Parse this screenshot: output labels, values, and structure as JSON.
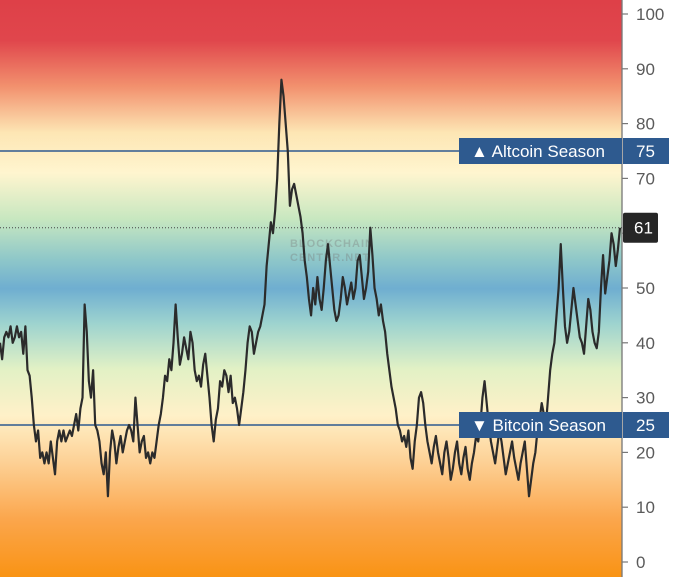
{
  "chart_data": {
    "type": "line",
    "title": "",
    "xlabel": "",
    "ylabel": "",
    "ylim": [
      0,
      100
    ],
    "grid": false,
    "y_ticks": [
      "100",
      "90",
      "80",
      "70",
      "60",
      "50",
      "40",
      "30",
      "20",
      "10",
      "0"
    ],
    "current_value": "61",
    "thresholds": [
      {
        "label": "▲ Altcoin Season",
        "value": 75,
        "value_text": "75",
        "color": "#2e5a8f"
      },
      {
        "label": "▼ Bitcoin Season",
        "value": 25,
        "value_text": "25",
        "color": "#2e5a8f"
      }
    ],
    "series": [
      {
        "color": "#2b2b2b",
        "values": [
          40,
          37,
          41,
          42,
          41,
          43,
          40,
          41,
          43,
          41,
          42,
          38,
          43,
          35,
          34,
          30,
          25,
          22,
          24,
          19,
          20,
          18,
          20,
          18,
          22,
          19,
          16,
          22,
          24,
          22,
          24,
          22,
          23,
          24,
          23,
          25,
          27,
          24,
          28,
          30,
          47,
          42,
          33,
          30,
          35,
          25,
          24,
          22,
          18,
          16,
          20,
          12,
          20,
          24,
          22,
          18,
          21,
          23,
          20,
          22,
          24,
          25,
          24,
          22,
          30,
          25,
          20,
          22,
          23,
          19,
          20,
          18,
          20,
          19,
          22,
          25,
          27,
          30,
          34,
          33,
          37,
          35,
          40,
          47,
          41,
          36,
          38,
          41,
          39,
          37,
          42,
          40,
          35,
          33,
          34,
          32,
          36,
          38,
          34,
          30,
          25,
          22,
          26,
          28,
          33,
          32,
          35,
          34,
          31,
          34,
          29,
          30,
          28,
          25,
          28,
          31,
          35,
          40,
          43,
          42,
          38,
          40,
          42,
          43,
          45,
          47,
          54,
          58,
          62,
          60,
          64,
          70,
          80,
          88,
          85,
          80,
          75,
          65,
          68,
          69,
          67,
          65,
          63,
          60,
          55,
          52,
          48,
          45,
          50,
          47,
          52,
          48,
          46,
          50,
          55,
          58,
          54,
          50,
          46,
          44,
          45,
          48,
          52,
          50,
          47,
          49,
          51,
          48,
          50,
          55,
          56,
          52,
          48,
          50,
          53,
          61,
          56,
          50,
          48,
          45,
          47,
          44,
          42,
          38,
          35,
          32,
          30,
          28,
          25,
          24,
          22,
          23,
          21,
          24,
          19,
          17,
          22,
          25,
          30,
          31,
          29,
          25,
          22,
          20,
          18,
          21,
          23,
          20,
          18,
          16,
          20,
          22,
          19,
          15,
          17,
          20,
          22,
          18,
          16,
          19,
          21,
          17,
          15,
          18,
          20,
          23,
          22,
          25,
          30,
          33,
          29,
          25,
          22,
          20,
          18,
          21,
          24,
          22,
          19,
          16,
          18,
          20,
          22,
          19,
          17,
          15,
          18,
          20,
          22,
          17,
          12,
          15,
          18,
          20,
          24,
          26,
          29,
          27,
          25,
          30,
          35,
          38,
          40,
          45,
          50,
          58,
          50,
          43,
          40,
          42,
          46,
          50,
          47,
          44,
          41,
          40,
          38,
          43,
          48,
          46,
          42,
          40,
          39,
          42,
          50,
          56,
          49,
          52,
          55,
          60,
          58,
          54,
          57,
          61
        ]
      }
    ],
    "watermark": "BLOCKCHAIN CENTER.NET"
  }
}
